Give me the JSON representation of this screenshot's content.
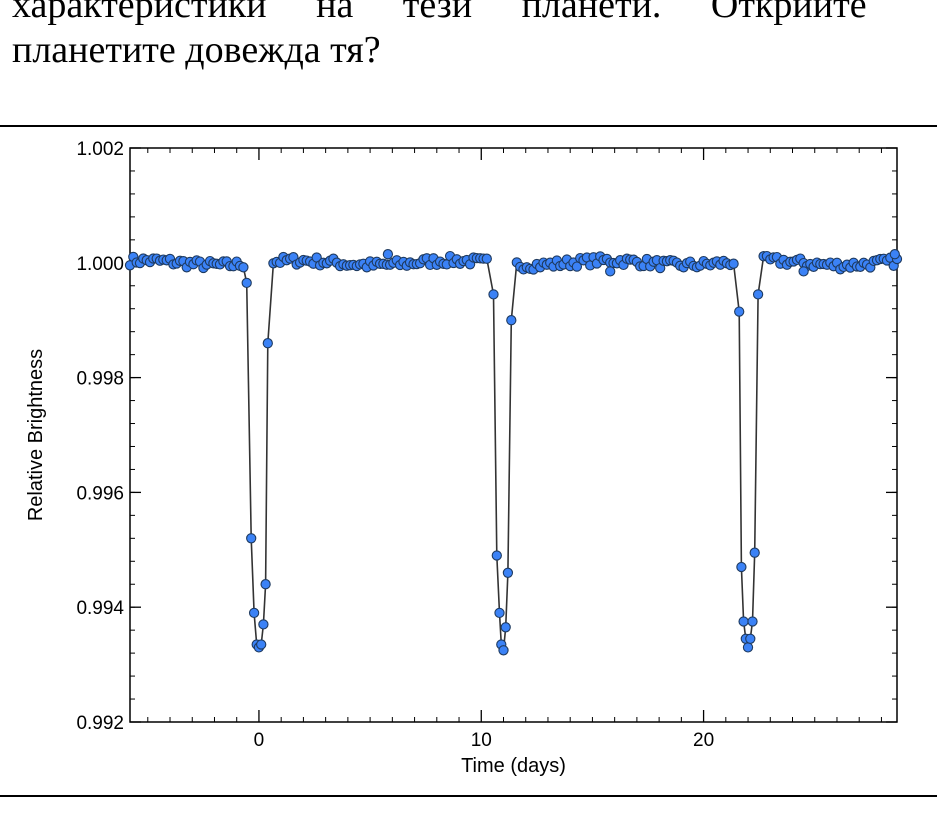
{
  "text": {
    "line1": "характеристики на тези планети. Открийте",
    "line2": "планетите довежда тя?"
  },
  "chart_data": {
    "type": "scatter",
    "title": "",
    "xlabel": "Time (days)",
    "ylabel": "Relative Brightness",
    "xlim": [
      -5.8,
      28.7
    ],
    "ylim": [
      0.992,
      1.002
    ],
    "xticks": [
      0,
      10,
      20
    ],
    "xtick_labels": [
      "0",
      "10",
      "20"
    ],
    "yticks": [
      0.992,
      0.994,
      0.996,
      0.998,
      1.0,
      1.002
    ],
    "ytick_labels": [
      "0.992",
      "0.994",
      "0.996",
      "0.998",
      "1.000",
      "1.002"
    ],
    "grid": false,
    "legend": "none",
    "marker_color": "#3b82f6",
    "marker_edge_color": "#1e3a5f",
    "line_color": "#333333",
    "baseline": 1.0,
    "baseline_x_start": -5.8,
    "baseline_x_end": 28.7,
    "transits": [
      {
        "center": 0.0,
        "depth_min": 0.99333,
        "points": [
          [
            -0.55,
            0.99965
          ],
          [
            -0.35,
            0.9952
          ],
          [
            -0.22,
            0.9939
          ],
          [
            -0.1,
            0.99335
          ],
          [
            0.0,
            0.9933
          ],
          [
            0.1,
            0.99335
          ],
          [
            0.2,
            0.9937
          ],
          [
            0.3,
            0.9944
          ],
          [
            0.4,
            0.9986
          ]
        ]
      },
      {
        "center": 11.0,
        "depth_min": 0.99326,
        "points": [
          [
            10.55,
            0.99945
          ],
          [
            10.7,
            0.9949
          ],
          [
            10.82,
            0.9939
          ],
          [
            10.9,
            0.99335
          ],
          [
            11.0,
            0.99325
          ],
          [
            11.1,
            0.99365
          ],
          [
            11.2,
            0.9946
          ],
          [
            11.35,
            0.999
          ]
        ]
      },
      {
        "center": 22.0,
        "depth_min": 0.9933,
        "points": [
          [
            21.6,
            0.99915
          ],
          [
            21.7,
            0.9947
          ],
          [
            21.8,
            0.99375
          ],
          [
            21.9,
            0.99345
          ],
          [
            22.0,
            0.9933
          ],
          [
            22.1,
            0.99345
          ],
          [
            22.2,
            0.99375
          ],
          [
            22.3,
            0.99495
          ],
          [
            22.45,
            0.99945
          ]
        ]
      }
    ],
    "noise_amplitude": 0.00013,
    "outlier_points": [
      [
        5.8,
        1.00015
      ],
      [
        15.8,
        0.99985
      ],
      [
        24.5,
        0.99985
      ],
      [
        28.6,
        1.00015
      ]
    ]
  }
}
